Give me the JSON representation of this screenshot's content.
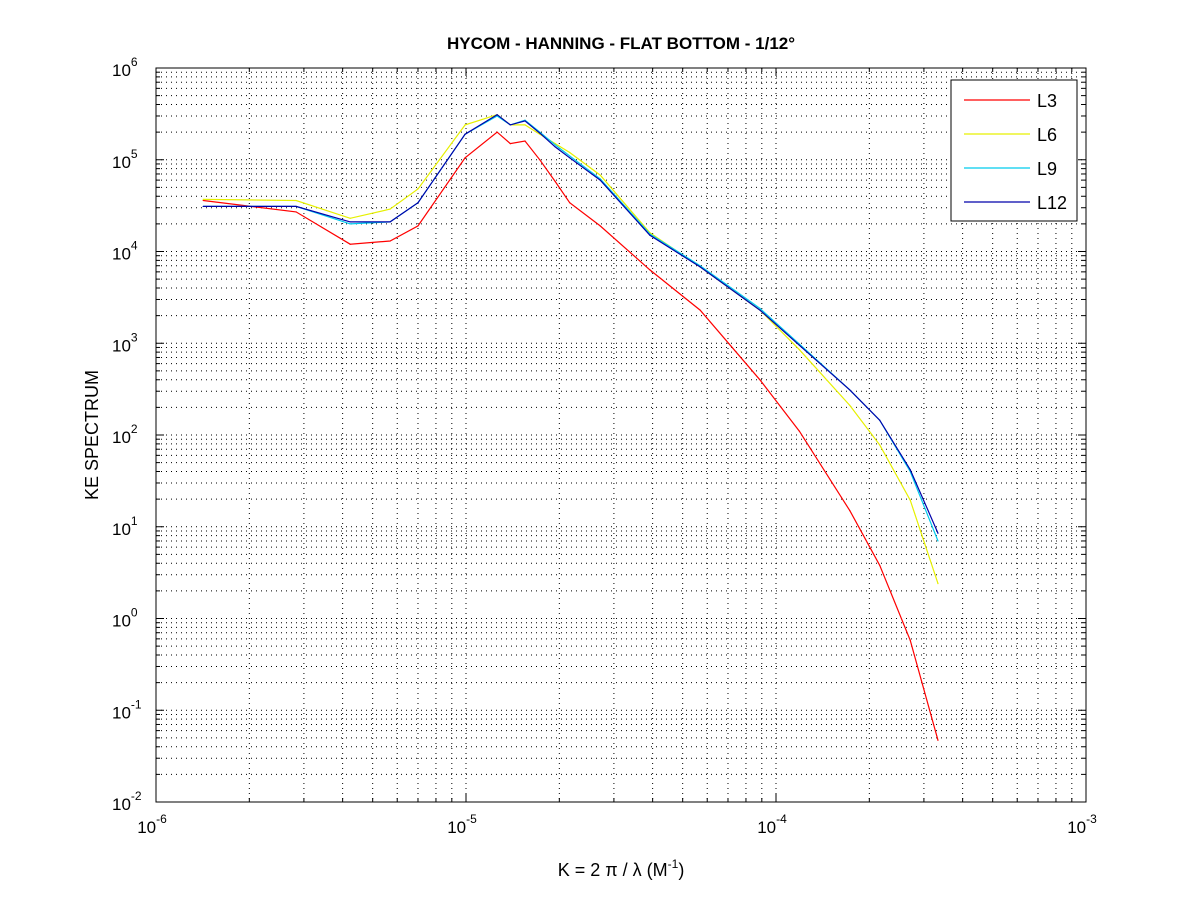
{
  "chart_data": {
    "type": "line",
    "title": "HYCOM - HANNING - FLAT BOTTOM - 1/12°",
    "xlabel": {
      "main": "K = 2 π / λ  (M",
      "sup": "-1",
      "tail": ")"
    },
    "ylabel": "KE SPECTRUM",
    "xscale": "log",
    "yscale": "log",
    "xlim": [
      1e-06,
      0.001
    ],
    "ylim": [
      0.01,
      1000000.0
    ],
    "tick_base": "10",
    "xtick_exponents": [
      "-6",
      "-5",
      "-4",
      "-3"
    ],
    "ytick_exponents": [
      "-2",
      "-1",
      "0",
      "1",
      "2",
      "3",
      "4",
      "5",
      "6"
    ],
    "grid": true,
    "legend_position": "top-right",
    "x": [
      1.42e-06,
      2.83e-06,
      4.23e-06,
      5.69e-06,
      7e-06,
      9.93e-06,
      1.26e-05,
      1.39e-05,
      1.55e-05,
      1.73e-05,
      1.94e-05,
      2.16e-05,
      2.71e-05,
      3.92e-05,
      5.69e-05,
      8.87e-05,
      0.000119,
      0.000173,
      0.000216,
      0.000271,
      0.000333
    ],
    "series": [
      {
        "name": "L3",
        "color": "#ff0000",
        "values": [
          36000,
          27000,
          12000,
          13000,
          19000,
          105000,
          200000,
          150000,
          160000,
          100000,
          58000,
          34000,
          19000,
          6300,
          2300,
          400,
          110,
          15,
          3.8,
          0.58,
          0.047
        ]
      },
      {
        "name": "L6",
        "color": "#e6f000",
        "values": [
          37000,
          36000,
          23000,
          29000,
          48000,
          240000,
          310000,
          240000,
          240000,
          190000,
          150000,
          120000,
          68000,
          16000,
          6800,
          2300,
          850,
          210,
          78,
          19.5,
          2.4
        ]
      },
      {
        "name": "L9",
        "color": "#00ccee",
        "values": [
          31000,
          31000,
          20000,
          21000,
          34000,
          190000,
          300000,
          240000,
          270000,
          200000,
          145000,
          110000,
          62000,
          15500,
          7000,
          2400,
          980,
          310,
          145,
          40,
          7.0
        ]
      },
      {
        "name": "L12",
        "color": "#0000aa",
        "values": [
          31000,
          31000,
          21000,
          21000,
          34000,
          190000,
          310000,
          240000,
          265000,
          195000,
          138000,
          105000,
          60000,
          15000,
          6800,
          2300,
          950,
          310,
          145,
          42,
          8.5
        ]
      }
    ]
  }
}
